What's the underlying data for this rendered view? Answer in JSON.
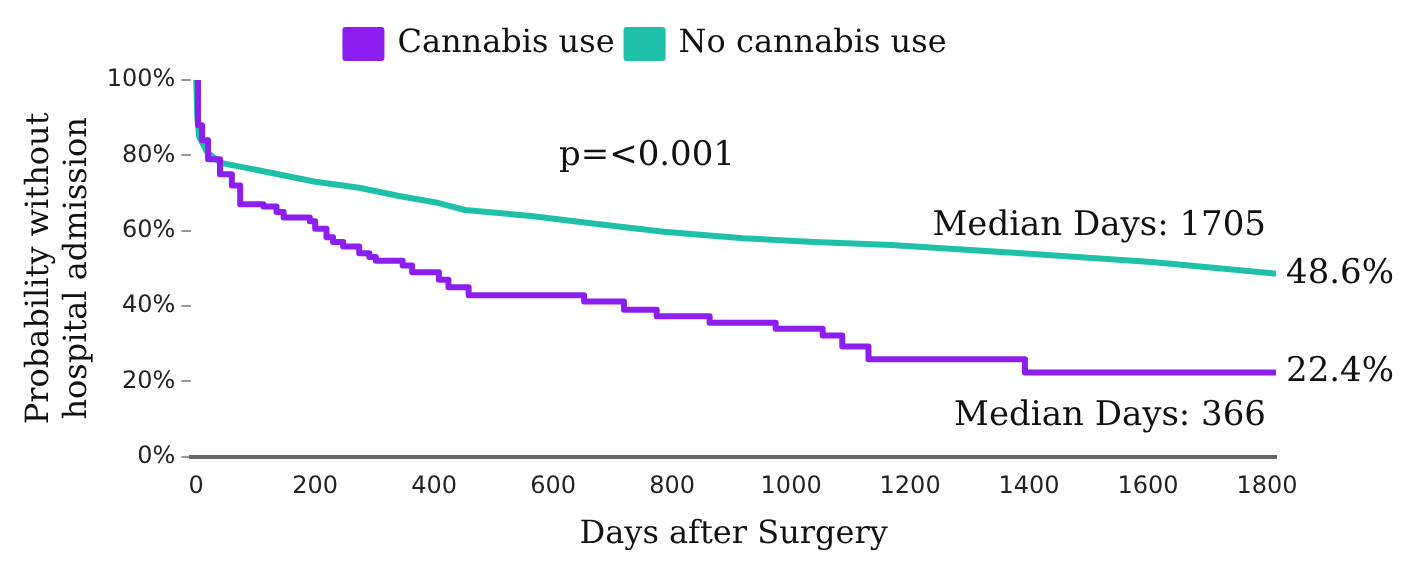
{
  "chart_data": {
    "type": "step",
    "xlabel": "Days after Surgery",
    "ylabel": "Probability without\nhospital admission",
    "xlim": [
      -8,
      1815
    ],
    "xticks": [
      0,
      200,
      400,
      600,
      800,
      1000,
      1200,
      1400,
      1600,
      1800
    ],
    "ylim": [
      0,
      100
    ],
    "yticks": [
      {
        "value": 0,
        "label": "0%"
      },
      {
        "value": 20,
        "label": "20%"
      },
      {
        "value": 40,
        "label": "40%"
      },
      {
        "value": 60,
        "label": "60%"
      },
      {
        "value": 80,
        "label": "80%"
      },
      {
        "value": 100,
        "label": "100%"
      }
    ],
    "grid": false,
    "legend": "top",
    "marker": "none",
    "line_style": "solid",
    "series": [
      {
        "name": "Cannabis use",
        "color": "#8c1ff0",
        "x": [
          0,
          3,
          10,
          20,
          40,
          60,
          74,
          113,
          135,
          147,
          191,
          200,
          219,
          230,
          247,
          274,
          291,
          302,
          347,
          363,
          408,
          424,
          458,
          652,
          719,
          774,
          863,
          974,
          1053,
          1086,
          1130,
          1393,
          1815
        ],
        "values": [
          100,
          88,
          84,
          79,
          75,
          72,
          67,
          66.4,
          65,
          63.5,
          62.5,
          60.5,
          58.3,
          57,
          55.8,
          54,
          53,
          52,
          50.8,
          49,
          47,
          45,
          42.9,
          41.2,
          39,
          37.3,
          35.6,
          34,
          32.2,
          29.3,
          25.9,
          22.4,
          22.4
        ]
      },
      {
        "name": "No cannabis use",
        "color": "#1fc0a8",
        "type": "line",
        "x": [
          0,
          2,
          5,
          19,
          41,
          119,
          200,
          274,
          341,
          403,
          452,
          563,
          674,
          786,
          919,
          1030,
          1168,
          1387,
          1606,
          1815
        ],
        "values": [
          100,
          90,
          85,
          80.7,
          78,
          75.6,
          73,
          71.4,
          69.2,
          67.5,
          65.5,
          63.9,
          61.8,
          59.7,
          58,
          57.1,
          56.2,
          54,
          51.7,
          48.6
        ]
      }
    ],
    "annotations": [
      "p=<0.001",
      "Median Days: 1705",
      "Median Days: 366",
      {
        "text": "48.6%",
        "x": 1815,
        "y": 48.6
      },
      {
        "text": "22.4%",
        "x": 1815,
        "y": 22.4
      }
    ]
  }
}
